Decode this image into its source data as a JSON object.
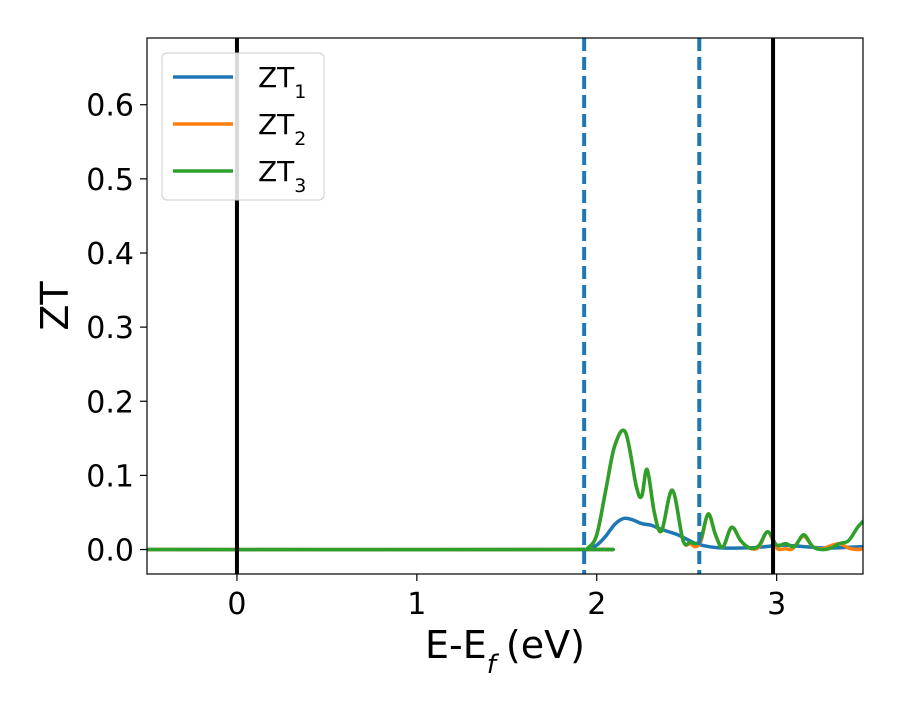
{
  "chart_data": {
    "type": "line",
    "title": "",
    "xlabel": "E-E",
    "xlabel_sub": "f",
    "xlabel_unit": "(eV)",
    "ylabel": "ZT",
    "xlim": [
      -0.5,
      3.48
    ],
    "ylim": [
      -0.033,
      0.69
    ],
    "x_ticks": [
      {
        "value": 0,
        "label": "0"
      },
      {
        "value": 1,
        "label": "1"
      },
      {
        "value": 2,
        "label": "2"
      },
      {
        "value": 3,
        "label": "3"
      }
    ],
    "y_ticks": [
      {
        "value": 0.0,
        "label": "0.0"
      },
      {
        "value": 0.1,
        "label": "0.1"
      },
      {
        "value": 0.2,
        "label": "0.2"
      },
      {
        "value": 0.3,
        "label": "0.3"
      },
      {
        "value": 0.4,
        "label": "0.4"
      },
      {
        "value": 0.5,
        "label": "0.5"
      },
      {
        "value": 0.6,
        "label": "0.6"
      }
    ],
    "grid": false,
    "legend_position": "top-left",
    "vertical_lines": [
      {
        "x": 0.0,
        "style": "solid",
        "color": "#000000"
      },
      {
        "x": 1.93,
        "style": "dashed",
        "color": "#1f77b4"
      },
      {
        "x": 2.57,
        "style": "dashed",
        "color": "#1f77b4"
      },
      {
        "x": 2.98,
        "style": "solid",
        "color": "#000000"
      }
    ],
    "series": [
      {
        "name": "ZT",
        "name_sub": "1",
        "color": "#1f77b4",
        "x": [
          -0.5,
          1.9,
          1.95,
          2.0,
          2.05,
          2.1,
          2.15,
          2.2,
          2.25,
          2.3,
          2.35,
          2.4,
          2.45,
          2.5,
          2.55,
          2.6,
          2.65,
          2.7,
          2.8,
          2.9,
          2.98,
          3.05,
          3.1,
          3.2,
          3.3,
          3.4,
          3.48
        ],
        "y": [
          0.0,
          0.0,
          0.001,
          0.006,
          0.018,
          0.034,
          0.042,
          0.04,
          0.035,
          0.033,
          0.028,
          0.024,
          0.02,
          0.014,
          0.008,
          0.005,
          0.003,
          0.002,
          0.002,
          0.003,
          0.005,
          0.006,
          0.005,
          0.003,
          0.002,
          0.003,
          0.004
        ]
      },
      {
        "name": "ZT",
        "name_sub": "2",
        "color": "#ff7f0e",
        "x": [
          -0.5,
          1.9,
          1.95,
          2.0,
          2.05,
          2.1,
          2.16,
          2.22,
          2.25,
          2.28,
          2.32,
          2.36,
          2.42,
          2.48,
          2.52,
          2.55,
          2.58,
          2.62,
          2.66,
          2.7,
          2.75,
          2.8,
          2.85,
          2.9,
          2.95,
          3.0,
          3.05,
          3.08,
          3.1,
          3.15,
          3.2,
          3.25,
          3.3,
          3.35,
          3.4,
          3.45,
          3.48
        ],
        "y": [
          0.0,
          0.0,
          0.002,
          0.02,
          0.08,
          0.14,
          0.158,
          0.085,
          0.072,
          0.108,
          0.05,
          0.025,
          0.08,
          0.012,
          0.008,
          0.004,
          0.012,
          0.048,
          0.02,
          0.003,
          0.03,
          0.012,
          0.002,
          0.003,
          0.024,
          0.002,
          0.001,
          0.0,
          0.004,
          0.018,
          0.004,
          0.001,
          0.005,
          0.008,
          0.002,
          0.0,
          0.001
        ]
      },
      {
        "name": "ZT",
        "name_sub": "3",
        "color": "#2ca02c",
        "x": [
          -0.5,
          1.9,
          1.95,
          2.0,
          2.05,
          2.1,
          2.16,
          2.22,
          2.25,
          2.28,
          2.32,
          2.36,
          2.42,
          2.48,
          2.52,
          2.55,
          2.58,
          2.62,
          2.66,
          2.7,
          2.75,
          2.8,
          2.85,
          2.9,
          2.95,
          3.0,
          3.05,
          3.1,
          3.15,
          3.2,
          3.25,
          3.3,
          3.35,
          3.4,
          3.45,
          3.48
        ],
        "y": [
          0.0,
          0.0,
          0.002,
          0.02,
          0.08,
          0.14,
          0.158,
          0.085,
          0.072,
          0.108,
          0.05,
          0.025,
          0.08,
          0.012,
          0.01,
          0.008,
          0.015,
          0.048,
          0.02,
          0.003,
          0.03,
          0.012,
          0.002,
          0.005,
          0.024,
          0.006,
          0.008,
          0.004,
          0.02,
          0.004,
          0.0,
          0.002,
          0.008,
          0.012,
          0.03,
          0.038
        ]
      }
    ]
  }
}
